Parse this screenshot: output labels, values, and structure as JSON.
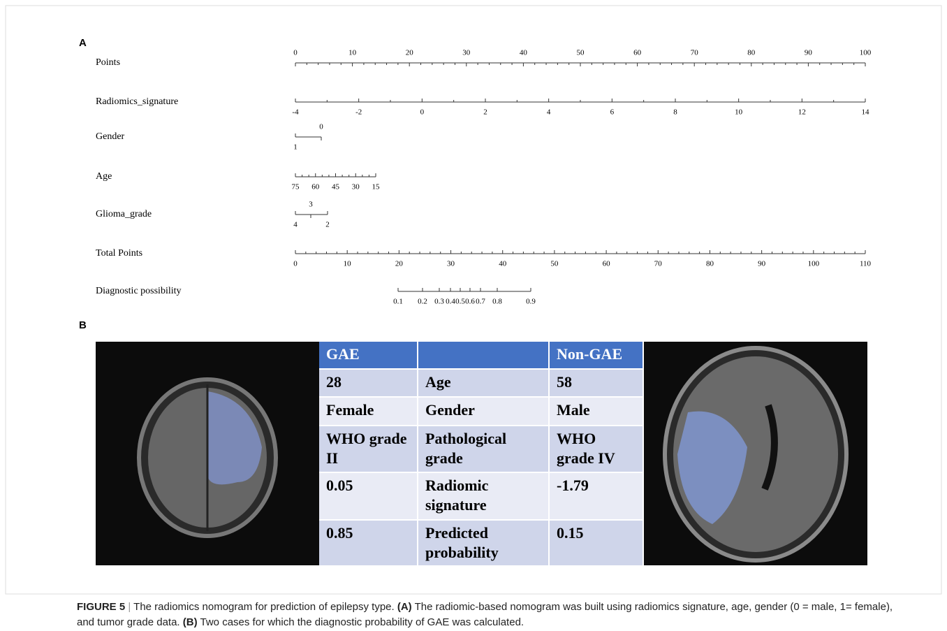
{
  "panel_a": {
    "label": "A",
    "rows": [
      {
        "name": "Points",
        "ticks": [
          0,
          10,
          20,
          30,
          40,
          50,
          60,
          70,
          80,
          90,
          100
        ]
      },
      {
        "name": "Radiomics_signature",
        "ticks": [
          -4,
          -2,
          0,
          2,
          4,
          6,
          8,
          10,
          12,
          14
        ]
      },
      {
        "name": "Gender",
        "ticks": [
          0,
          1
        ]
      },
      {
        "name": "Age",
        "ticks": [
          75,
          60,
          45,
          30,
          15
        ]
      },
      {
        "name": "Glioma_grade",
        "ticks": [
          3,
          4,
          2
        ]
      },
      {
        "name": "Total Points",
        "ticks": [
          0,
          10,
          20,
          30,
          40,
          50,
          60,
          70,
          80,
          90,
          100,
          110
        ]
      },
      {
        "name": "Diagnostic possibility",
        "ticks": [
          0.1,
          0.2,
          0.3,
          0.4,
          0.5,
          0.6,
          0.7,
          0.8,
          0.9
        ]
      }
    ]
  },
  "panel_b": {
    "label": "B",
    "table": {
      "header": [
        "GAE",
        "Non-GAE"
      ],
      "rows": [
        [
          28,
          "Age",
          58
        ],
        [
          "Female",
          "Gender",
          "Male"
        ],
        [
          "WHO grade II",
          "Pathological grade",
          "WHO grade IV"
        ],
        [
          0.05,
          "Radiomic signature",
          -1.79
        ],
        [
          0.85,
          "Predicted probability",
          0.15
        ]
      ]
    }
  },
  "caption": {
    "figure": "FIGURE 5",
    "separator": "|",
    "parts": [
      "The radiomics nomogram for prediction of epilepsy type.",
      "(A)",
      "The radiomic-based nomogram was built using radiomics signature, age, gender (0 = male, 1= female), and tumor grade data.",
      "(B)",
      "Two cases for which the diagnostic probability of GAE was calculated."
    ]
  }
}
